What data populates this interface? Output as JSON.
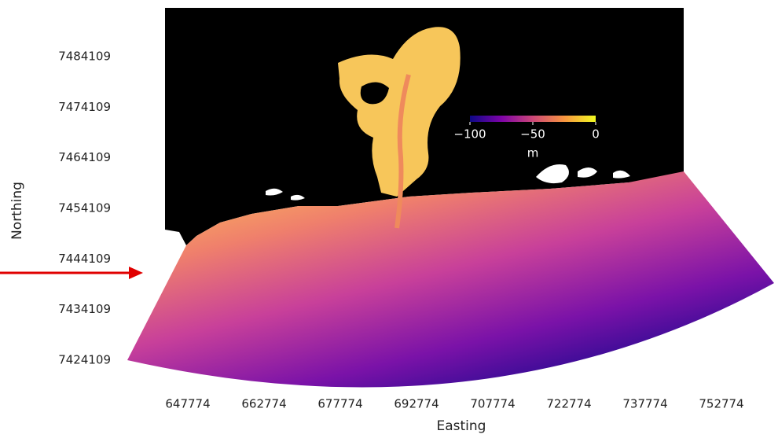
{
  "chart_data": {
    "type": "map",
    "x_label": "Easting",
    "y_label": "Northing",
    "xlim": [
      635558,
      763135
    ],
    "ylim": [
      7416800,
      7493751
    ],
    "xticks": [
      647774,
      662774,
      677774,
      692774,
      707774,
      722774,
      737774,
      752774
    ],
    "yticks": [
      7424109,
      7434109,
      7444109,
      7454109,
      7464109,
      7474109,
      7484109
    ],
    "colorbar": {
      "label": "m",
      "lim": [
        -100,
        0
      ],
      "ticks": [
        {
          "value": -100,
          "label": "−100"
        },
        {
          "value": -50,
          "label": "−50"
        },
        0
      ]
    }
  }
}
